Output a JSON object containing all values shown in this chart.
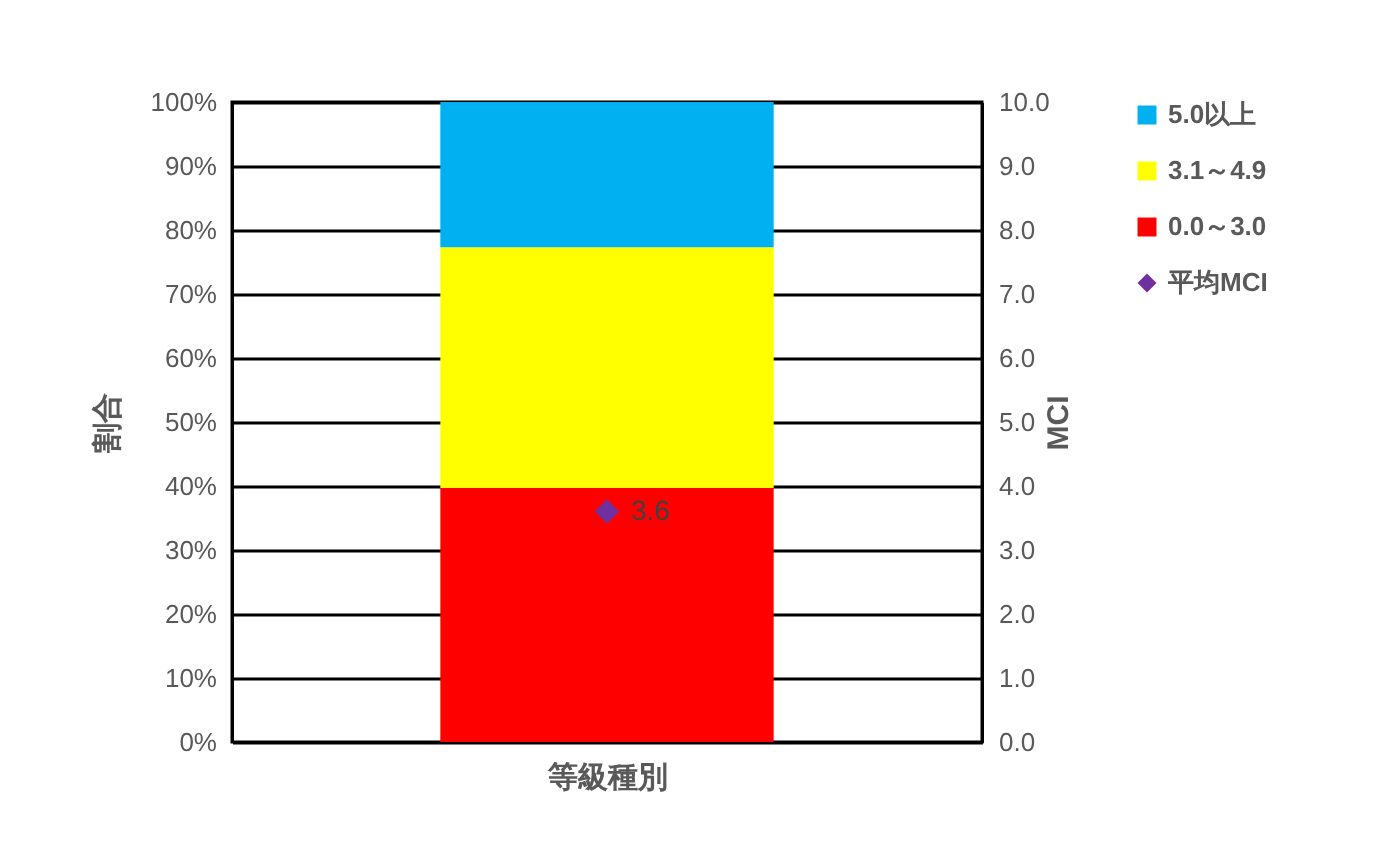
{
  "chart_data": {
    "type": "bar",
    "stacked": true,
    "xlabel": "等級種別",
    "ylabel": "割合",
    "y2label": "MCI",
    "categories": [
      null
    ],
    "series": [
      {
        "name": "0.0～3.0",
        "color": "#ff0000",
        "values": [
          39.7
        ]
      },
      {
        "name": "3.1～4.9",
        "color": "#ffff00",
        "values": [
          37.6
        ]
      },
      {
        "name": "5.0以上",
        "color": "#00b0f0",
        "values": [
          22.7
        ]
      },
      {
        "name": "平均MCI",
        "type": "scatter",
        "axis": "y2",
        "marker": "diamond",
        "color": "#7030a0",
        "values": [
          3.6
        ],
        "value_labels": [
          "3.6"
        ]
      }
    ],
    "ylim": [
      0,
      100
    ],
    "yticks": [
      {
        "value": 0,
        "label": "0%"
      },
      {
        "value": 10,
        "label": "10%"
      },
      {
        "value": 20,
        "label": "20%"
      },
      {
        "value": 30,
        "label": "30%"
      },
      {
        "value": 40,
        "label": "40%"
      },
      {
        "value": 50,
        "label": "50%"
      },
      {
        "value": 60,
        "label": "60%"
      },
      {
        "value": 70,
        "label": "70%"
      },
      {
        "value": 80,
        "label": "80%"
      },
      {
        "value": 90,
        "label": "90%"
      },
      {
        "value": 100,
        "label": "100%"
      }
    ],
    "y2lim": [
      0,
      10
    ],
    "y2ticks": [
      {
        "value": 0,
        "label": "0.0"
      },
      {
        "value": 1,
        "label": "1.0"
      },
      {
        "value": 2,
        "label": "2.0"
      },
      {
        "value": 3,
        "label": "3.0"
      },
      {
        "value": 4,
        "label": "4.0"
      },
      {
        "value": 5,
        "label": "5.0"
      },
      {
        "value": 6,
        "label": "6.0"
      },
      {
        "value": 7,
        "label": "7.0"
      },
      {
        "value": 8,
        "label": "8.0"
      },
      {
        "value": 9,
        "label": "9.0"
      },
      {
        "value": 10,
        "label": "10.0"
      }
    ],
    "grid": "y",
    "legend": "right"
  }
}
